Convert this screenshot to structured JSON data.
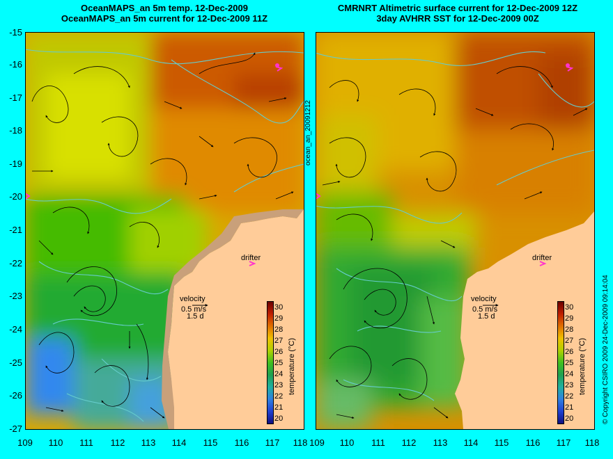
{
  "left_panel": {
    "title_line1": "OceanMAPS_an 5m temp. 12-Dec-2009",
    "title_line2": "OceanMAPS_an 5m current for 12-Dec-2009 11Z",
    "colorbar_label": "temperature (°C)"
  },
  "right_panel": {
    "title_line1": "CMRNRT Altimetric surface current for 12-Dec-2009 12Z",
    "title_line2": "3day AVHRR SST for 12-Dec-2009 00Z",
    "colorbar_label": "temperature (°C)"
  },
  "annotations": {
    "drifter": "drifter",
    "velocity": "velocity",
    "speed_scale": "0.5 m/s",
    "time_scale": "1.5 d"
  },
  "side_labels": {
    "middle": "ocean_an_20091212",
    "right": "© Copyright CSIRO 2009   24-Dec-2009 09:14:04"
  },
  "axes": {
    "y_ticks": [
      "-15",
      "-16",
      "-17",
      "-18",
      "-19",
      "-20",
      "-21",
      "-22",
      "-23",
      "-24",
      "-25",
      "-26",
      "-27"
    ],
    "x_ticks": [
      "109",
      "110",
      "111",
      "112",
      "113",
      "114",
      "115",
      "116",
      "117",
      "118"
    ],
    "colorbar_ticks": [
      "30",
      "29",
      "28",
      "27",
      "26",
      "25",
      "24",
      "23",
      "22",
      "21",
      "20"
    ]
  },
  "colors": {
    "background": "#00ffff",
    "land": "#ffcc99",
    "drifter": "#ff33cc",
    "isotherm": "#66cccc"
  }
}
